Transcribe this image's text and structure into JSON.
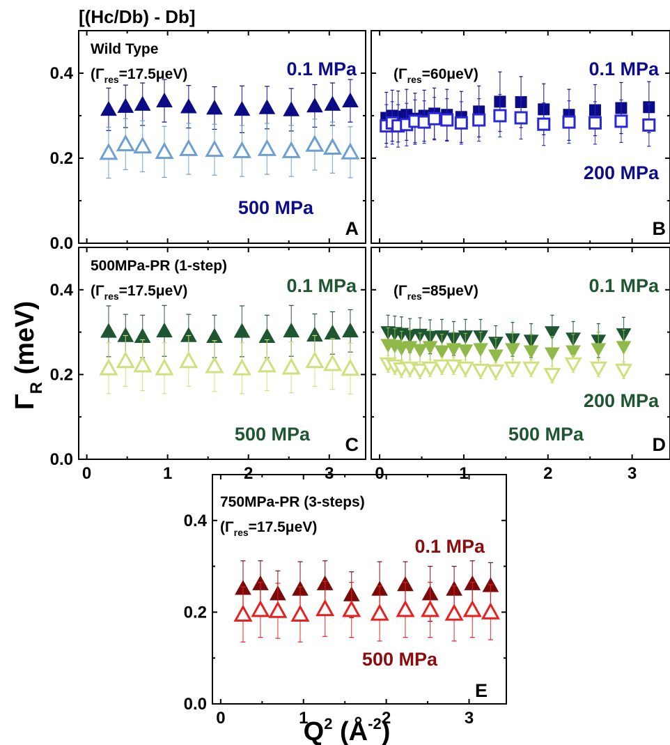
{
  "figure": {
    "header": "[(Hc/Db) - Db]",
    "ylabel_symbol": "Γ",
    "ylabel_sub": "R",
    "ylabel_rest": " (meV)",
    "xlabel_main": "Q",
    "xlabel_sup": "2",
    "xlabel_paren_open": " (Å",
    "xlabel_sup2": "-2",
    "xlabel_paren_close": ")",
    "res_prefix": "(Γ",
    "res_sub": "res"
  },
  "chart_data": [
    {
      "panel": "A",
      "type": "scatter",
      "title": "Wild Type",
      "res_value": "=17.5μeV)",
      "ylim": [
        0,
        0.5
      ],
      "xlim": [
        -0.1,
        3.45
      ],
      "yticks": [
        "0.0",
        "0.2",
        "0.4"
      ],
      "xticks": [],
      "labels": [
        {
          "text": "0.1 MPa",
          "color": "#0d0d8c"
        },
        {
          "text": "500 MPa",
          "color": "#0d0d8c"
        }
      ],
      "series": [
        {
          "marker": "triangle-up",
          "filled": true,
          "color": "#0b0b85",
          "x": [
            0.27,
            0.48,
            0.69,
            0.96,
            1.26,
            1.58,
            1.92,
            2.23,
            2.53,
            2.82,
            3.04,
            3.26
          ],
          "y": [
            0.315,
            0.322,
            0.327,
            0.335,
            0.321,
            0.318,
            0.315,
            0.319,
            0.314,
            0.323,
            0.327,
            0.335
          ],
          "err": [
            0.05,
            0.05,
            0.05,
            0.05,
            0.05,
            0.05,
            0.055,
            0.05,
            0.05,
            0.05,
            0.05,
            0.05
          ]
        },
        {
          "marker": "triangle-up",
          "filled": false,
          "color": "#6e9fd2",
          "x": [
            0.27,
            0.48,
            0.69,
            0.96,
            1.26,
            1.58,
            1.92,
            2.23,
            2.53,
            2.82,
            3.04,
            3.26
          ],
          "y": [
            0.213,
            0.233,
            0.228,
            0.215,
            0.222,
            0.22,
            0.217,
            0.222,
            0.217,
            0.232,
            0.225,
            0.214
          ],
          "err": [
            0.06,
            0.06,
            0.06,
            0.06,
            0.06,
            0.06,
            0.06,
            0.06,
            0.06,
            0.06,
            0.06,
            0.06
          ]
        }
      ]
    },
    {
      "panel": "B",
      "type": "scatter",
      "title": "",
      "res_value": "=60μeV)",
      "ylim": [
        0,
        0.5
      ],
      "xlim": [
        -0.1,
        3.45
      ],
      "yticks": [],
      "xticks": [],
      "labels": [
        {
          "text": "0.1 MPa",
          "color": "#0d0d8c"
        },
        {
          "text": "200 MPa",
          "color": "#0d0d8c"
        }
      ],
      "series": [
        {
          "marker": "square",
          "filled": true,
          "color": "#0b0b85",
          "x": [
            0.08,
            0.15,
            0.22,
            0.32,
            0.42,
            0.53,
            0.65,
            0.8,
            0.97,
            1.18,
            1.43,
            1.68,
            1.95,
            2.25,
            2.56,
            2.87,
            3.2
          ],
          "y": [
            0.295,
            0.3,
            0.298,
            0.302,
            0.293,
            0.3,
            0.305,
            0.302,
            0.297,
            0.31,
            0.333,
            0.332,
            0.315,
            0.302,
            0.313,
            0.318,
            0.32
          ],
          "err": [
            0.06,
            0.06,
            0.06,
            0.06,
            0.06,
            0.06,
            0.06,
            0.06,
            0.06,
            0.06,
            0.07,
            0.06,
            0.06,
            0.06,
            0.06,
            0.06,
            0.06
          ]
        },
        {
          "marker": "square",
          "filled": false,
          "color": "#2828d8",
          "x": [
            0.08,
            0.15,
            0.22,
            0.32,
            0.42,
            0.53,
            0.65,
            0.8,
            0.97,
            1.18,
            1.43,
            1.68,
            1.95,
            2.25,
            2.56,
            2.87,
            3.2
          ],
          "y": [
            0.276,
            0.283,
            0.276,
            0.279,
            0.287,
            0.285,
            0.293,
            0.29,
            0.283,
            0.29,
            0.3,
            0.295,
            0.28,
            0.285,
            0.283,
            0.287,
            0.278
          ],
          "err": [
            0.05,
            0.05,
            0.05,
            0.05,
            0.05,
            0.05,
            0.05,
            0.05,
            0.05,
            0.05,
            0.05,
            0.05,
            0.05,
            0.05,
            0.05,
            0.05,
            0.05
          ]
        }
      ]
    },
    {
      "panel": "C",
      "type": "scatter",
      "title": "500MPa-PR (1-step)",
      "res_value": "=17.5μeV)",
      "ylim": [
        0,
        0.5
      ],
      "xlim": [
        -0.1,
        3.45
      ],
      "yticks": [
        "0.0",
        "0.2",
        "0.4"
      ],
      "xticks": [
        "0",
        "1",
        "2",
        "3"
      ],
      "labels": [
        {
          "text": "0.1 MPa",
          "color": "#1f5632"
        },
        {
          "text": "500 MPa",
          "color": "#1f5632"
        }
      ],
      "series": [
        {
          "marker": "triangle-up",
          "filled": true,
          "color": "#1f5632",
          "x": [
            0.27,
            0.48,
            0.69,
            0.96,
            1.26,
            1.58,
            1.92,
            2.23,
            2.53,
            2.82,
            3.04,
            3.26
          ],
          "y": [
            0.302,
            0.292,
            0.29,
            0.303,
            0.292,
            0.29,
            0.302,
            0.29,
            0.303,
            0.293,
            0.298,
            0.303
          ],
          "err": [
            0.06,
            0.05,
            0.05,
            0.06,
            0.05,
            0.05,
            0.06,
            0.05,
            0.06,
            0.05,
            0.05,
            0.05
          ]
        },
        {
          "marker": "triangle-up",
          "filled": false,
          "color": "#d0e07c",
          "x": [
            0.27,
            0.48,
            0.69,
            0.96,
            1.26,
            1.58,
            1.92,
            2.23,
            2.53,
            2.82,
            3.04,
            3.26
          ],
          "y": [
            0.215,
            0.232,
            0.222,
            0.215,
            0.232,
            0.22,
            0.215,
            0.222,
            0.217,
            0.232,
            0.225,
            0.214
          ],
          "err": [
            0.06,
            0.06,
            0.06,
            0.06,
            0.06,
            0.06,
            0.06,
            0.06,
            0.06,
            0.06,
            0.06,
            0.06
          ]
        }
      ]
    },
    {
      "panel": "D",
      "type": "scatter",
      "title": "",
      "res_value": "=85μeV)",
      "ylim": [
        0,
        0.5
      ],
      "xlim": [
        -0.1,
        3.45
      ],
      "yticks": [],
      "xticks": [
        "0",
        "1",
        "2",
        "3"
      ],
      "labels": [
        {
          "text": "0.1 MPa",
          "color": "#1f5632"
        },
        {
          "text": "200 MPa",
          "color": "#1f5632"
        },
        {
          "text": "500 MPa",
          "color": "#1f5632"
        }
      ],
      "series": [
        {
          "marker": "triangle-down",
          "filled": true,
          "color": "#1f5632",
          "x": [
            0.1,
            0.18,
            0.26,
            0.36,
            0.48,
            0.6,
            0.74,
            0.88,
            1.02,
            1.2,
            1.38,
            1.58,
            1.8,
            2.05,
            2.3,
            2.6,
            2.9
          ],
          "y": [
            0.3,
            0.298,
            0.296,
            0.292,
            0.294,
            0.289,
            0.29,
            0.285,
            0.29,
            0.29,
            0.275,
            0.283,
            0.28,
            0.3,
            0.285,
            0.28,
            0.295
          ],
          "err": [
            0.04,
            0.04,
            0.04,
            0.04,
            0.04,
            0.04,
            0.04,
            0.04,
            0.04,
            0.04,
            0.04,
            0.04,
            0.04,
            0.04,
            0.04,
            0.04,
            0.04
          ]
        },
        {
          "marker": "triangle-down",
          "filled": true,
          "color": "#8fba4a",
          "x": [
            0.1,
            0.18,
            0.26,
            0.36,
            0.48,
            0.6,
            0.74,
            0.88,
            1.02,
            1.2,
            1.38,
            1.58,
            1.8,
            2.05,
            2.3,
            2.6,
            2.9
          ],
          "y": [
            0.27,
            0.268,
            0.262,
            0.265,
            0.258,
            0.265,
            0.255,
            0.26,
            0.257,
            0.26,
            0.245,
            0.26,
            0.255,
            0.25,
            0.255,
            0.26,
            0.265
          ],
          "err": [
            0.04,
            0.04,
            0.04,
            0.04,
            0.04,
            0.04,
            0.04,
            0.04,
            0.04,
            0.04,
            0.04,
            0.04,
            0.04,
            0.04,
            0.04,
            0.04,
            0.04
          ]
        },
        {
          "marker": "triangle-down",
          "filled": false,
          "color": "#d0e07c",
          "x": [
            0.1,
            0.18,
            0.26,
            0.36,
            0.48,
            0.6,
            0.74,
            0.88,
            1.02,
            1.2,
            1.38,
            1.58,
            1.8,
            2.05,
            2.3,
            2.6,
            2.9
          ],
          "y": [
            0.225,
            0.22,
            0.213,
            0.215,
            0.21,
            0.215,
            0.22,
            0.22,
            0.215,
            0.21,
            0.208,
            0.215,
            0.215,
            0.2,
            0.225,
            0.215,
            0.21
          ],
          "err": [
            0.02,
            0.02,
            0.02,
            0.02,
            0.02,
            0.02,
            0.02,
            0.02,
            0.02,
            0.02,
            0.02,
            0.02,
            0.02,
            0.02,
            0.02,
            0.02,
            0.02
          ]
        }
      ]
    },
    {
      "panel": "E",
      "type": "scatter",
      "title": "750MPa-PR (3-steps)",
      "res_value": "=17.5μeV)",
      "ylim": [
        0,
        0.5
      ],
      "xlim": [
        -0.1,
        3.45
      ],
      "yticks": [
        "0.0",
        "0.2",
        "0.4"
      ],
      "xticks": [
        "0",
        "1",
        "2",
        "3"
      ],
      "labels": [
        {
          "text": "0.1 MPa",
          "color": "#8a0c0c"
        },
        {
          "text": "500 MPa",
          "color": "#8a0c0c"
        }
      ],
      "series": [
        {
          "marker": "triangle-up",
          "filled": true,
          "color": "#7a0a0a",
          "x": [
            0.27,
            0.48,
            0.69,
            0.96,
            1.26,
            1.58,
            1.92,
            2.23,
            2.53,
            2.82,
            3.04,
            3.26
          ],
          "y": [
            0.252,
            0.262,
            0.24,
            0.25,
            0.262,
            0.238,
            0.25,
            0.26,
            0.24,
            0.25,
            0.262,
            0.258
          ],
          "err": [
            0.06,
            0.05,
            0.05,
            0.06,
            0.05,
            0.05,
            0.06,
            0.05,
            0.06,
            0.05,
            0.05,
            0.05
          ]
        },
        {
          "marker": "triangle-up",
          "filled": false,
          "color": "#e81f1f",
          "x": [
            0.27,
            0.48,
            0.69,
            0.96,
            1.26,
            1.58,
            1.92,
            2.23,
            2.53,
            2.82,
            3.04,
            3.26
          ],
          "y": [
            0.195,
            0.205,
            0.203,
            0.195,
            0.207,
            0.205,
            0.197,
            0.205,
            0.205,
            0.197,
            0.205,
            0.2
          ],
          "err": [
            0.06,
            0.06,
            0.06,
            0.06,
            0.06,
            0.06,
            0.06,
            0.06,
            0.06,
            0.06,
            0.06,
            0.06
          ]
        }
      ]
    }
  ]
}
